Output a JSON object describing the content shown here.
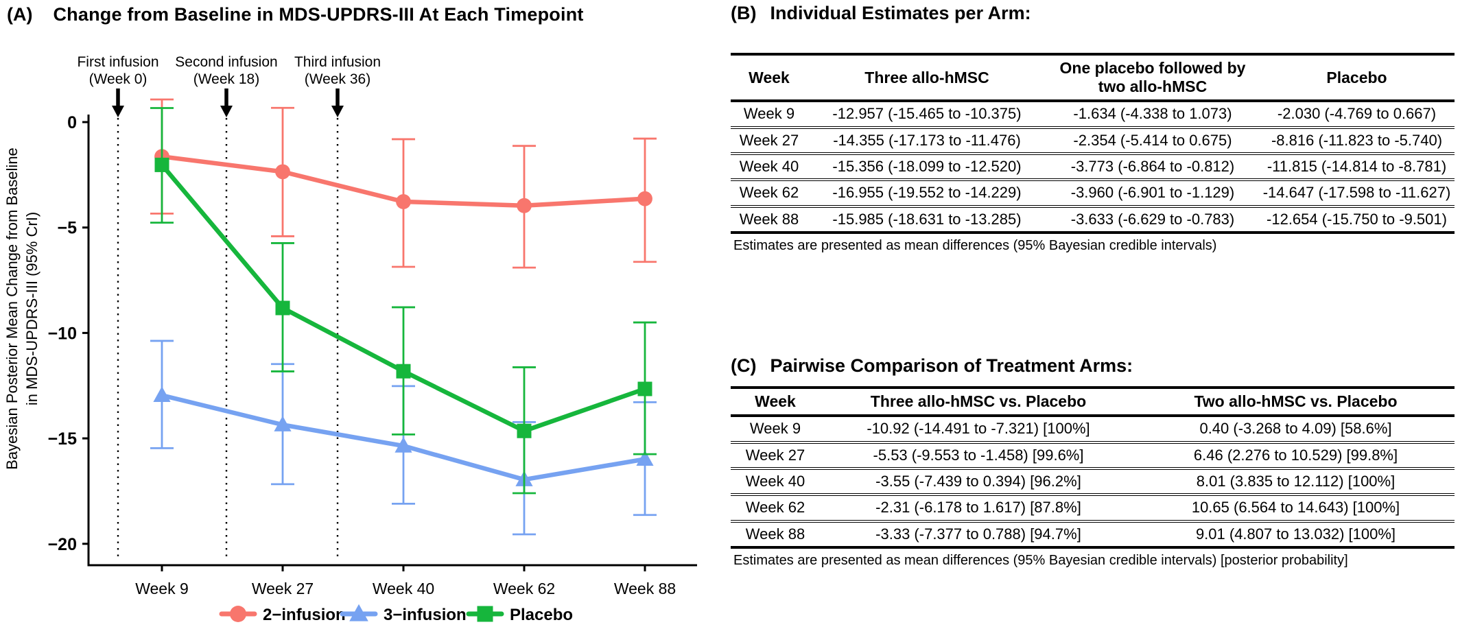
{
  "panelA": {
    "label": "(A)",
    "title": "Change from Baseline in MDS-UPDRS-III At Each Timepoint",
    "y_axis_label_line1": "Bayesian Posterior Mean Change from Baseline",
    "y_axis_label_line2": "in MDS-UPDRS-III (95% CrI)"
  },
  "chart_data": {
    "type": "line",
    "title": "Change from Baseline in MDS-UPDRS-III At Each Timepoint",
    "categories": [
      "Week 9",
      "Week 27",
      "Week 40",
      "Week 62",
      "Week 88"
    ],
    "y_ticks": [
      0,
      -5,
      -10,
      -15,
      -20
    ],
    "ylim": [
      -21.5,
      1.6
    ],
    "ylabel": "Bayesian Posterior Mean Change from Baseline in MDS-UPDRS-III (95% CrI)",
    "grid": false,
    "legend_position": "bottom",
    "annotations": [
      {
        "line1": "First infusion",
        "line2": "(Week 0)"
      },
      {
        "line1": "Second infusion",
        "line2": "(Week 18)"
      },
      {
        "line1": "Third infusion",
        "line2": "(Week 36)"
      }
    ],
    "series": [
      {
        "name": "2−infusion",
        "marker": "circle",
        "color": "#F8766D",
        "values": [
          -1.634,
          -2.354,
          -3.773,
          -3.96,
          -3.633
        ],
        "ci_low": [
          -4.338,
          -5.414,
          -6.864,
          -6.901,
          -6.629
        ],
        "ci_high": [
          1.073,
          0.675,
          -0.812,
          -1.129,
          -0.783
        ]
      },
      {
        "name": "3−infusion",
        "marker": "triangle",
        "color": "#76A2F1",
        "values": [
          -12.957,
          -14.355,
          -15.356,
          -16.955,
          -15.985
        ],
        "ci_low": [
          -15.465,
          -17.173,
          -18.099,
          -19.552,
          -18.631
        ],
        "ci_high": [
          -10.375,
          -11.476,
          -12.52,
          -14.229,
          -13.285
        ]
      },
      {
        "name": "Placebo",
        "marker": "square",
        "color": "#16B63C",
        "values": [
          -2.03,
          -8.816,
          -11.815,
          -14.647,
          -12.654
        ],
        "ci_low": [
          -4.769,
          -11.823,
          -14.814,
          -17.598,
          -15.75
        ],
        "ci_high": [
          0.667,
          -5.74,
          -8.781,
          -11.627,
          -9.501
        ]
      }
    ]
  },
  "panelB": {
    "label": "(B)",
    "title": "Individual Estimates per Arm:",
    "table": {
      "headers": [
        "Week",
        "Three allo-hMSC",
        "One placebo followed by two allo-hMSC",
        "Placebo"
      ],
      "rows": [
        [
          "Week 9",
          "-12.957 (-15.465 to -10.375)",
          "-1.634 (-4.338 to 1.073)",
          "-2.030 (-4.769 to 0.667)"
        ],
        [
          "Week 27",
          "-14.355 (-17.173 to -11.476)",
          "-2.354 (-5.414 to 0.675)",
          "-8.816 (-11.823 to -5.740)"
        ],
        [
          "Week 40",
          "-15.356 (-18.099 to -12.520)",
          "-3.773 (-6.864 to -0.812)",
          "-11.815 (-14.814 to -8.781)"
        ],
        [
          "Week 62",
          "-16.955 (-19.552 to -14.229)",
          "-3.960 (-6.901 to -1.129)",
          "-14.647 (-17.598 to -11.627)"
        ],
        [
          "Week 88",
          "-15.985 (-18.631 to -13.285)",
          "-3.633 (-6.629 to -0.783)",
          "-12.654 (-15.750 to -9.501)"
        ]
      ]
    },
    "footnote": "Estimates are presented as mean differences (95% Bayesian credible intervals)"
  },
  "panelC": {
    "label": "(C)",
    "title": "Pairwise Comparison of Treatment Arms:",
    "table": {
      "headers": [
        "Week",
        "Three allo-hMSC vs. Placebo",
        "Two allo-hMSC vs. Placebo"
      ],
      "rows": [
        [
          "Week 9",
          "-10.92 (-14.491 to -7.321) [100%]",
          "0.40 (-3.268 to 4.09) [58.6%]"
        ],
        [
          "Week 27",
          "-5.53 (-9.553 to -1.458) [99.6%]",
          "6.46 (2.276 to 10.529) [99.8%]"
        ],
        [
          "Week 40",
          "-3.55 (-7.439 to 0.394) [96.2%]",
          "8.01 (3.835 to 12.112) [100%]"
        ],
        [
          "Week 62",
          "-2.31 (-6.178 to 1.617) [87.8%]",
          "10.65 (6.564 to 14.643) [100%]"
        ],
        [
          "Week 88",
          "-3.33 (-7.377 to 0.788) [94.7%]",
          "9.01 (4.807 to 13.032) [100%]"
        ]
      ]
    },
    "footnote": "Estimates are presented as mean differences (95% Bayesian credible intervals) [posterior probability]"
  }
}
